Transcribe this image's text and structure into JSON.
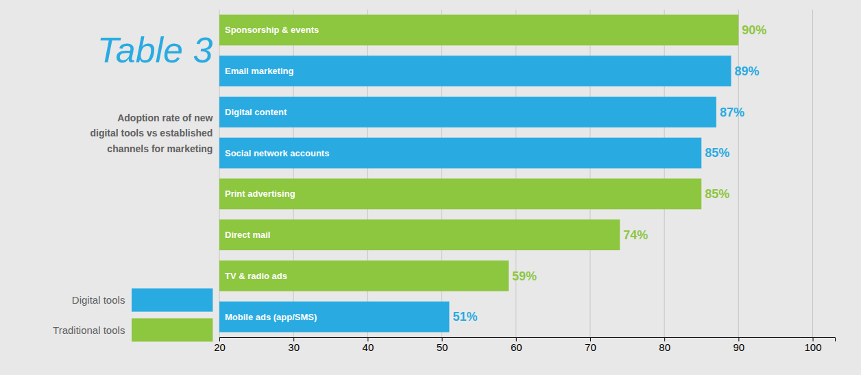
{
  "chart_data": {
    "type": "bar",
    "orientation": "horizontal",
    "stacked": true,
    "title": "Table 3",
    "subtitle": "Adoption rate of new\ndigital tools vs established\nchannels for marketing",
    "categories": [
      "Mobile ads (app/SMS)",
      "TV & radio ads",
      "Direct mail",
      "Print advertising",
      "Social network accounts",
      "Digital content",
      "Email marketing",
      "Sponsorship & events"
    ],
    "series": [
      {
        "name": "Digital tools",
        "color": "#29abe2",
        "values": [
          51,
          null,
          null,
          null,
          85,
          87,
          89,
          null
        ],
        "value_labels": [
          "51%",
          null,
          null,
          null,
          "85%",
          "87%",
          "89%",
          null
        ]
      },
      {
        "name": "Traditional tools",
        "color": "#8dc63f",
        "values": [
          null,
          59,
          74,
          85,
          null,
          null,
          null,
          90
        ],
        "value_labels": [
          null,
          "59%",
          "74%",
          "85%",
          null,
          null,
          null,
          "90%"
        ]
      }
    ],
    "xlim": [
      20,
      103
    ],
    "xticks": [
      20,
      30,
      40,
      50,
      60,
      70,
      80,
      90,
      100
    ],
    "grid": true,
    "legend": "left",
    "data_labels": true
  }
}
